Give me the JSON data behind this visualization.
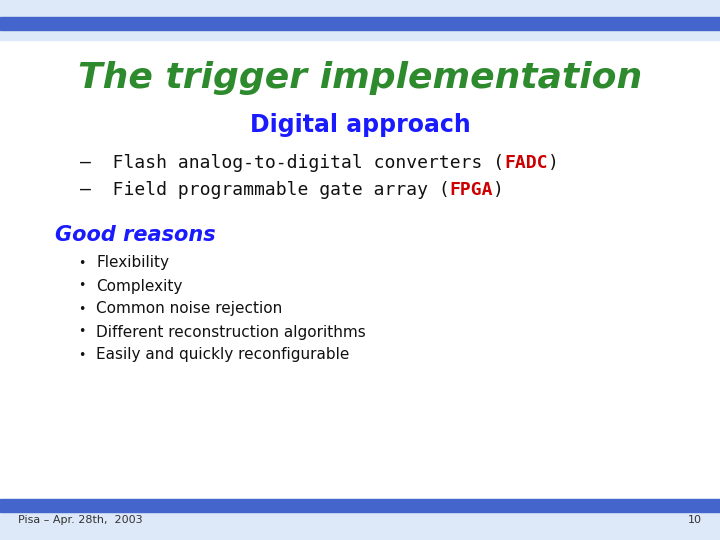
{
  "bg_color": "#ffffff",
  "header_bar_color": "#4466cc",
  "header_bg_color": "#dde8f8",
  "footer_bar_color": "#4466cc",
  "footer_bg_color": "#dde8f8",
  "title": "The trigger implementation",
  "title_color": "#2d8a2d",
  "subtitle": "Digital approach",
  "subtitle_color": "#1a1aff",
  "bullet1_pre": "–  Flash analog-to-digital converters (",
  "bullet1_abbr": "FADC",
  "bullet1_post": ")",
  "bullet2_pre": "–  Field programmable gate array (",
  "bullet2_abbr": "FPGA",
  "bullet2_post": ")",
  "abbr_color": "#cc0000",
  "bullet_color": "#111111",
  "section_title": "Good reasons",
  "section_title_color": "#1a1aff",
  "bullets": [
    "Flexibility",
    "Complexity",
    "Common noise rejection",
    "Different reconstruction algorithms",
    "Easily and quickly reconfigurable"
  ],
  "bullets_color": "#111111",
  "footer_text": "Pisa – Apr. 28th,  2003",
  "footer_number": "10",
  "footer_text_color": "#333333"
}
